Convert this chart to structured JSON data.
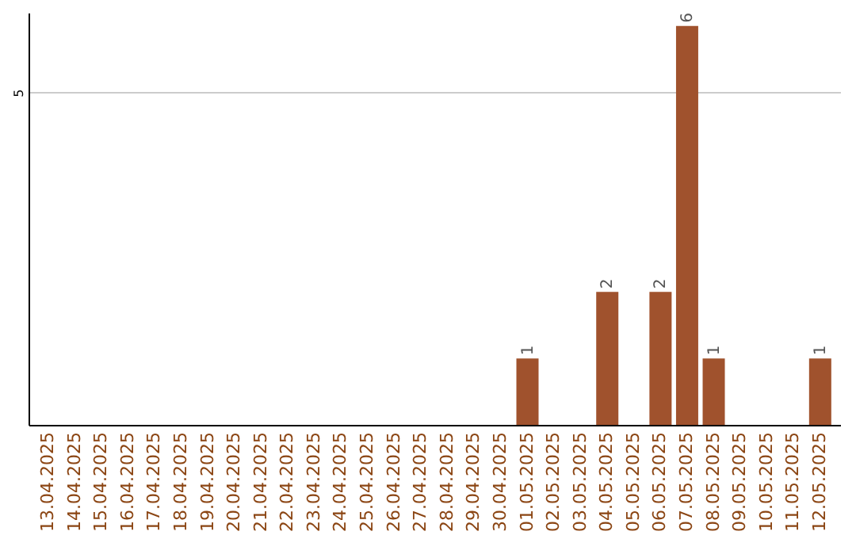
{
  "chart_data": {
    "type": "bar",
    "categories": [
      "13.04.2025",
      "14.04.2025",
      "15.04.2025",
      "16.04.2025",
      "17.04.2025",
      "18.04.2025",
      "19.04.2025",
      "20.04.2025",
      "21.04.2025",
      "22.04.2025",
      "23.04.2025",
      "24.04.2025",
      "25.04.2025",
      "26.04.2025",
      "27.04.2025",
      "28.04.2025",
      "29.04.2025",
      "30.04.2025",
      "01.05.2025",
      "02.05.2025",
      "03.05.2025",
      "04.05.2025",
      "05.05.2025",
      "06.05.2025",
      "07.05.2025",
      "08.05.2025",
      "09.05.2025",
      "10.05.2025",
      "11.05.2025",
      "12.05.2025"
    ],
    "values": [
      null,
      null,
      null,
      null,
      null,
      null,
      null,
      null,
      null,
      null,
      null,
      null,
      null,
      null,
      null,
      null,
      null,
      null,
      1,
      null,
      null,
      2,
      null,
      2,
      6,
      1,
      null,
      null,
      null,
      1
    ],
    "data_labels": true,
    "color": "#a0522d",
    "ylim": [
      0,
      6.2
    ],
    "yticks": [
      5
    ],
    "grid": "y"
  }
}
